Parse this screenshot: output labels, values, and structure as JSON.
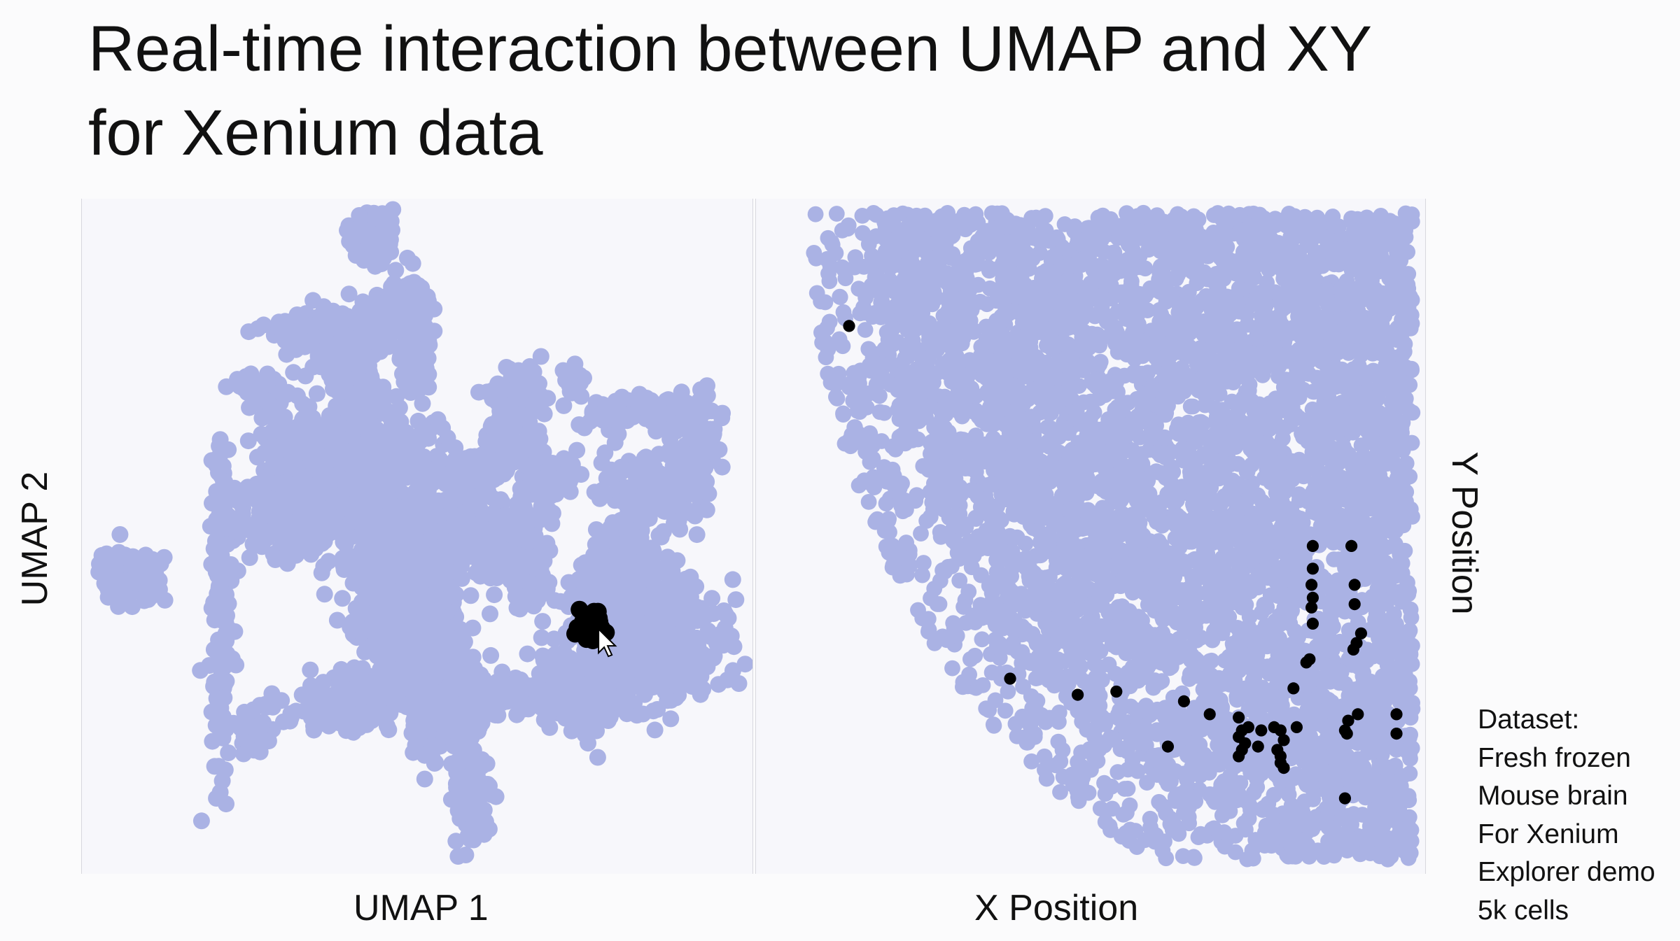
{
  "slide": {
    "title_line1": "Real-time interaction between UMAP and XY",
    "title_line2": "for Xenium data"
  },
  "colors": {
    "background": "#fbfbfc",
    "cell": "#aab2e4",
    "selected": "#000000"
  },
  "chart_data": [
    {
      "type": "scatter",
      "name": "umap",
      "xlabel": "UMAP 1",
      "ylabel": "UMAP 2",
      "xlim": [
        0,
        100
      ],
      "ylim": [
        0,
        100
      ],
      "series": [
        {
          "name": "cells",
          "color": "#aab2e4",
          "clusters": [
            {
              "cx": 43,
              "cy": 96,
              "sx": 1.6,
              "sy": 2.4,
              "n": 90
            },
            {
              "cx": 34,
              "cy": 82,
              "sx": 3.5,
              "sy": 1.6,
              "n": 120
            },
            {
              "cx": 47,
              "cy": 84,
              "sx": 2.2,
              "sy": 2.5,
              "n": 110
            },
            {
              "cx": 50,
              "cy": 80,
              "sx": 1.4,
              "sy": 4.5,
              "n": 90
            },
            {
              "cx": 27,
              "cy": 72,
              "sx": 1.8,
              "sy": 1.3,
              "n": 80
            },
            {
              "cx": 41,
              "cy": 72,
              "sx": 2.2,
              "sy": 5.0,
              "n": 200
            },
            {
              "cx": 44,
              "cy": 57,
              "sx": 9.0,
              "sy": 4.5,
              "n": 560
            },
            {
              "cx": 32,
              "cy": 61,
              "sx": 3.0,
              "sy": 4.5,
              "n": 140
            },
            {
              "cx": 20,
              "cy": 40,
              "sx": 0.8,
              "sy": 12,
              "n": 150
            },
            {
              "cx": 29,
              "cy": 53,
              "sx": 4.0,
              "sy": 3.2,
              "n": 110
            },
            {
              "cx": 48,
              "cy": 34,
              "sx": 4.5,
              "sy": 4.5,
              "n": 270
            },
            {
              "cx": 53,
              "cy": 38,
              "sx": 2.0,
              "sy": 6.5,
              "n": 170
            },
            {
              "cx": 39,
              "cy": 24,
              "sx": 5.0,
              "sy": 2.0,
              "n": 140
            },
            {
              "cx": 56,
              "cy": 24,
              "sx": 2.8,
              "sy": 2.8,
              "n": 150
            },
            {
              "cx": 58,
              "cy": 12,
              "sx": 1.3,
              "sy": 4.5,
              "n": 120
            },
            {
              "cx": 52,
              "cy": 28,
              "sx": 1.2,
              "sy": 7,
              "n": 110
            },
            {
              "cx": 63,
              "cy": 26,
              "sx": 5.0,
              "sy": 1.5,
              "n": 90
            },
            {
              "cx": 61,
              "cy": 50,
              "sx": 4.5,
              "sy": 3.5,
              "n": 150
            },
            {
              "cx": 67,
              "cy": 44,
              "sx": 1.6,
              "sy": 3.0,
              "n": 90
            },
            {
              "cx": 70,
              "cy": 58,
              "sx": 2.0,
              "sy": 1.3,
              "n": 60
            },
            {
              "cx": 65,
              "cy": 71,
              "sx": 2.0,
              "sy": 3.0,
              "n": 80
            },
            {
              "cx": 74,
              "cy": 74,
              "sx": 0.8,
              "sy": 1.0,
              "n": 25
            },
            {
              "cx": 85,
              "cy": 69,
              "sx": 5.0,
              "sy": 1.2,
              "n": 120
            },
            {
              "cx": 93,
              "cy": 62,
              "sx": 1.8,
              "sy": 4.5,
              "n": 100
            },
            {
              "cx": 85,
              "cy": 57,
              "sx": 3.5,
              "sy": 3.0,
              "n": 120
            },
            {
              "cx": 83,
              "cy": 48,
              "sx": 2.2,
              "sy": 2.2,
              "n": 90
            },
            {
              "cx": 85,
              "cy": 35,
              "sx": 6.0,
              "sy": 5.0,
              "n": 430
            },
            {
              "cx": 76,
              "cy": 27,
              "sx": 4.5,
              "sy": 3.2,
              "n": 220
            },
            {
              "cx": 81,
              "cy": 42,
              "sx": 3.5,
              "sy": 2.2,
              "n": 130
            },
            {
              "cx": 6,
              "cy": 44,
              "sx": 2.5,
              "sy": 2.0,
              "n": 120
            },
            {
              "cx": 25,
              "cy": 20,
              "sx": 1.2,
              "sy": 1.4,
              "n": 40
            },
            {
              "cx": 37,
              "cy": 78,
              "sx": 1.8,
              "sy": 2.0,
              "n": 60
            },
            {
              "cx": 60,
              "cy": 60,
              "sx": 1.0,
              "sy": 1.3,
              "n": 40
            },
            {
              "cx": 47,
              "cy": 46,
              "sx": 4.5,
              "sy": 3.0,
              "n": 160
            },
            {
              "cx": 66,
              "cy": 63,
              "sx": 3.0,
              "sy": 1.5,
              "n": 50
            }
          ]
        },
        {
          "name": "selected",
          "color": "#000000",
          "clusters": [
            {
              "cx": 77,
              "cy": 36,
              "sx": 1.1,
              "sy": 1.1,
              "n": 55
            }
          ]
        }
      ]
    },
    {
      "type": "scatter",
      "name": "xy",
      "xlabel": "X Position",
      "ylabel": "Y Position",
      "xlim": [
        0,
        100
      ],
      "ylim": [
        0,
        100
      ],
      "series": [
        {
          "name": "cells",
          "color": "#aab2e4",
          "region": {
            "cx": 100,
            "cy": 100,
            "rx": 91,
            "ry": 108,
            "n": 5000
          }
        },
        {
          "name": "selected",
          "color": "#000000",
          "points": [
            [
              12.5,
              82.5
            ],
            [
              37.5,
              28
            ],
            [
              48,
              25.5
            ],
            [
              54,
              26
            ],
            [
              64.5,
              24.5
            ],
            [
              68.5,
              22.5
            ],
            [
              62,
              17.5
            ],
            [
              73,
              22
            ],
            [
              73.5,
              20
            ],
            [
              73,
              19
            ],
            [
              74,
              18
            ],
            [
              73.5,
              17
            ],
            [
              73,
              16
            ],
            [
              74.5,
              20.5
            ],
            [
              76.5,
              20
            ],
            [
              78.5,
              20.5
            ],
            [
              79.5,
              20
            ],
            [
              80,
              18.5
            ],
            [
              76,
              17.5
            ],
            [
              79,
              17
            ],
            [
              79.5,
              16
            ],
            [
              79.5,
              15
            ],
            [
              80,
              14.2
            ],
            [
              82,
              20.5
            ],
            [
              81.5,
              26.5
            ],
            [
              83.5,
              30.5
            ],
            [
              84,
              31
            ],
            [
              84.5,
              48.5
            ],
            [
              84.5,
              45
            ],
            [
              84.3,
              42.5
            ],
            [
              84.5,
              40.5
            ],
            [
              84.3,
              39
            ],
            [
              84.5,
              36.5
            ],
            [
              90.5,
              48.5
            ],
            [
              91,
              42.5
            ],
            [
              91,
              39.5
            ],
            [
              91.3,
              33.5
            ],
            [
              90.8,
              32.5
            ],
            [
              92,
              35
            ],
            [
              91.5,
              22.5
            ],
            [
              90,
              21.5
            ],
            [
              89.5,
              20
            ],
            [
              89.8,
              19.5
            ],
            [
              97.5,
              22.5
            ],
            [
              97.5,
              19.5
            ],
            [
              89.5,
              9.5
            ]
          ]
        }
      ]
    }
  ],
  "dataset_note": {
    "line1": "Dataset:",
    "line2": "Fresh frozen",
    "line3": "Mouse brain",
    "line4": "For Xenium",
    "line5": "Explorer demo",
    "line6": "5k cells"
  }
}
